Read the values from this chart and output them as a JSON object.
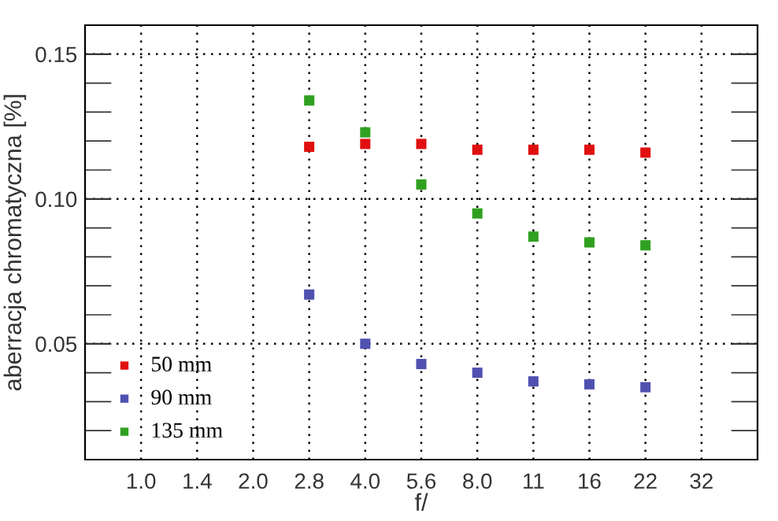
{
  "chart_data": {
    "type": "scatter",
    "xlabel": "f/",
    "ylabel": "aberracja chromatyczna [%]",
    "categories": [
      "1.0",
      "1.4",
      "2.0",
      "2.8",
      "4.0",
      "5.6",
      "8.0",
      "11",
      "16",
      "22",
      "32"
    ],
    "series": [
      {
        "name": "50 mm",
        "color": "#e01010",
        "values": [
          null,
          null,
          null,
          0.118,
          0.119,
          0.119,
          0.117,
          0.117,
          0.117,
          0.116,
          null
        ]
      },
      {
        "name": "90 mm",
        "color": "#5050b0",
        "values": [
          null,
          null,
          null,
          0.067,
          0.05,
          0.043,
          0.04,
          0.037,
          0.036,
          0.035,
          null
        ]
      },
      {
        "name": "135 mm",
        "color": "#30a020",
        "values": [
          null,
          null,
          null,
          0.134,
          0.123,
          0.105,
          0.095,
          0.087,
          0.085,
          0.084,
          null
        ]
      }
    ],
    "ylim": [
      0.01,
      0.16
    ],
    "yticks": [
      {
        "value": 0.05,
        "label": "0.05"
      },
      {
        "value": 0.1,
        "label": "0.10"
      },
      {
        "value": 0.15,
        "label": "0.15"
      }
    ],
    "grid": true,
    "legend": "bottom left",
    "marker": "square"
  }
}
